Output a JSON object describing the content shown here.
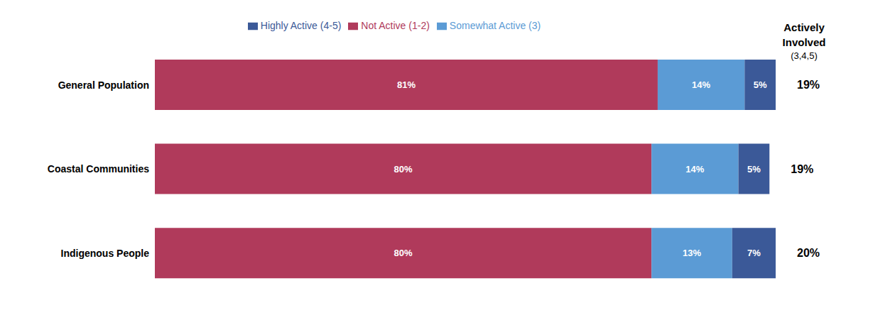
{
  "chart_data": {
    "type": "bar",
    "orientation": "horizontal",
    "stacked": true,
    "categories": [
      "General Population",
      "Coastal Communities",
      "Indigenous People"
    ],
    "series": [
      {
        "name": "Not Active (1-2)",
        "color": "#b03a5b",
        "values": [
          81,
          80,
          80
        ],
        "value_labels": [
          "81%",
          "80%",
          "80%"
        ]
      },
      {
        "name": "Somewhat Active (3)",
        "color": "#5b9bd5",
        "values": [
          14,
          14,
          13
        ],
        "value_labels": [
          "14%",
          "14%",
          "13%"
        ]
      },
      {
        "name": "Highly Active (4-5)",
        "color": "#3b5998",
        "values": [
          5,
          5,
          7
        ],
        "value_labels": [
          "5%",
          "5%",
          "7%"
        ]
      }
    ],
    "xlim": [
      0,
      100
    ],
    "data_labels": true,
    "tick_labels": "y",
    "grid": false,
    "legend": "top",
    "right_column": {
      "title": [
        "Actively",
        "Involved",
        "(3,4,5)"
      ],
      "values": [
        19,
        19,
        20
      ],
      "value_labels": [
        "19%",
        "19%",
        "20%"
      ]
    }
  }
}
